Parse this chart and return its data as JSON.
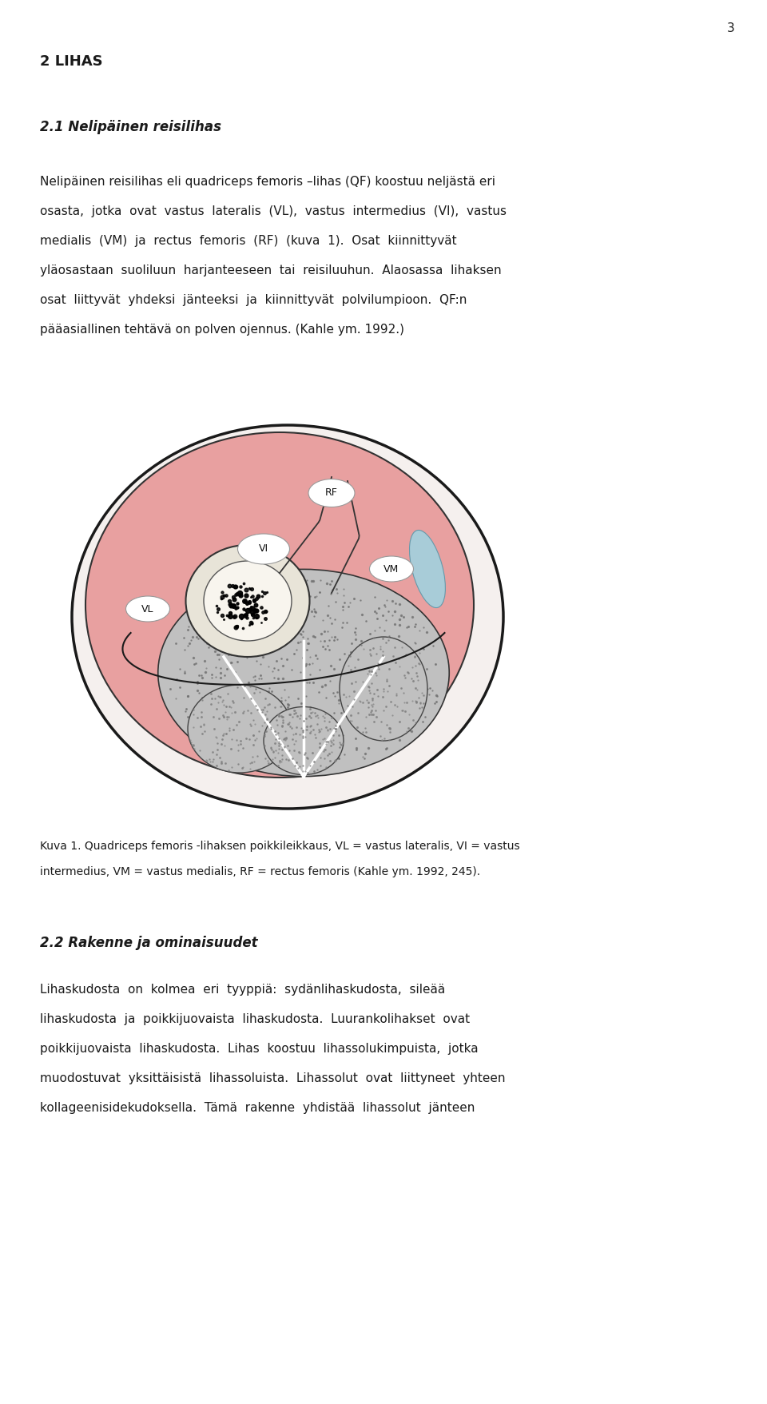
{
  "page_number": "3",
  "heading1": "2 LIHAS",
  "heading2": "2.1 Nelipäinen reisilihas",
  "para1_lines": [
    "Nelipäinen reisilihas eli quadriceps femoris –lihas (QF) koostuu neljästä eri",
    "osasta,  jotka  ovat  vastus  lateralis  (VL),  vastus  intermedius  (VI),  vastus",
    "medialis  (VM)  ja  rectus  femoris  (RF)  (kuva  1).  Osat  kiinnittyvät",
    "yläosastaan  suoliluun  harjanteeseen  tai  reisiluuhun.  Alaosassa  lihaksen",
    "osat  liittyvät  yhdeksi  jänteeksi  ja  kiinnittyvät  polvilumpioon.  QF:n",
    "pääasiallinen tehtävä on polven ojennus. (Kahle ym. 1992.)"
  ],
  "caption_lines": [
    "Kuva 1. Quadriceps femoris -lihaksen poikkileikkaus, VL = vastus lateralis, VI = vastus",
    "intermedius, VM = vastus medialis, RF = rectus femoris (Kahle ym. 1992, 245)."
  ],
  "heading3": "2.2 Rakenne ja ominaisuudet",
  "para2_lines": [
    "Lihaskudosta  on  kolmea  eri  tyyppiä:  sydänlihaskudosta,  sileää",
    "lihaskudosta  ja  poikkijuovaista  lihaskudosta.  Luurankolihakset  ovat",
    "poikkijuovaista  lihaskudosta.  Lihas  koostuu  lihassolukimpuista,  jotka",
    "muodostuvat  yksittäisistä  lihassoluista.  Lihassolut  ovat  liittyneet  yhteen",
    "kollageenisidekudoksella.  Tämä  rakenne  yhdistää  lihassolut  jänteen"
  ],
  "bg_color": "#ffffff",
  "text_color": "#1a1a1a",
  "pink_muscle": "#e8a0a0",
  "pink_muscle_dark": "#d08080",
  "gray_muscle": "#c0c0c0",
  "bone_cortex": "#e8e4d8",
  "bone_marrow": "#f0ece0",
  "blue_vessel": "#a8ccd8",
  "outer_ellipse_fill": "#f5f0ee"
}
